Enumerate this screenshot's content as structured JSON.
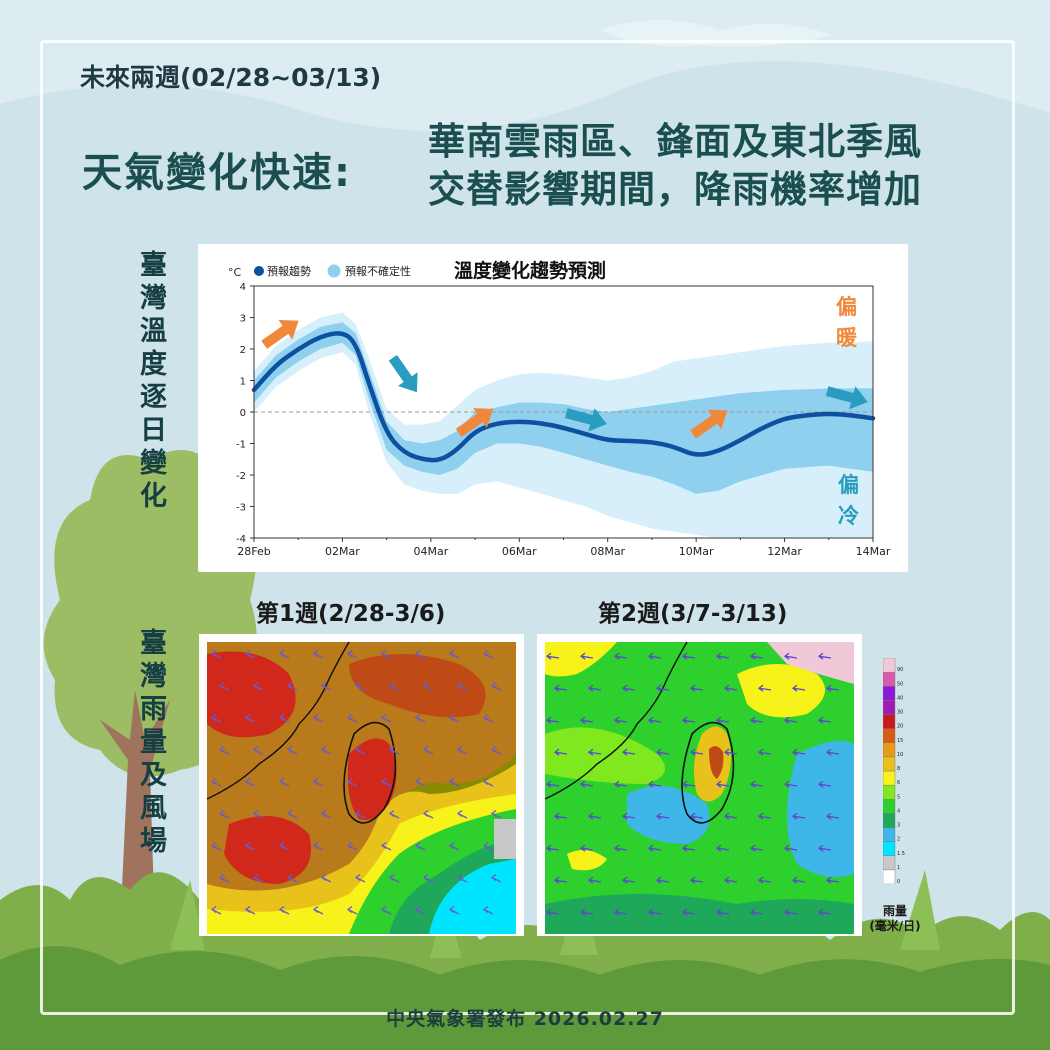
{
  "header": {
    "period": "未來兩週(02/28~03/13)",
    "headline": "天氣變化快速:",
    "subhead_line1": "華南雲雨區、鋒面及東北季風",
    "subhead_line2": "交替影響期間，降雨機率增加"
  },
  "side_labels": {
    "temperature": "臺灣溫度逐日變化",
    "rain_wind": "臺灣雨量及風場"
  },
  "chart_data": {
    "type": "line",
    "title": "溫度變化趨勢預測",
    "unit_label": "°C",
    "legend": [
      {
        "label": "預報趨勢",
        "color": "#0d4fa0"
      },
      {
        "label": "預報不確定性",
        "color": "#8fd0ef"
      }
    ],
    "x_ticks": [
      "28Feb",
      "02Mar",
      "04Mar",
      "06Mar",
      "08Mar",
      "10Mar",
      "12Mar",
      "14Mar"
    ],
    "x_range_days": [
      0,
      14
    ],
    "ylim": [
      -4,
      4
    ],
    "y_ticks": [
      4,
      3,
      2,
      1,
      0,
      -1,
      -2,
      -3,
      -4
    ],
    "series": [
      {
        "name": "預報趨勢",
        "x": [
          0,
          0.5,
          1,
          1.5,
          2,
          2.3,
          2.6,
          3,
          3.4,
          3.8,
          4.2,
          4.6,
          5,
          5.5,
          6,
          6.5,
          7,
          7.5,
          8,
          8.5,
          9,
          9.5,
          10,
          10.5,
          11,
          11.5,
          12,
          12.5,
          13,
          13.5,
          14
        ],
        "y": [
          0.7,
          1.5,
          2.0,
          2.4,
          2.55,
          2.2,
          0.9,
          -0.7,
          -1.3,
          -1.5,
          -1.55,
          -1.2,
          -0.6,
          -0.35,
          -0.3,
          -0.35,
          -0.5,
          -0.7,
          -0.9,
          -0.92,
          -0.95,
          -1.1,
          -1.4,
          -1.25,
          -0.9,
          -0.5,
          -0.2,
          -0.1,
          -0.05,
          -0.1,
          -0.2
        ],
        "color": "#0d4fa0"
      },
      {
        "name": "inner_band",
        "color": "#8fd0ef",
        "x": [
          0,
          0.5,
          1,
          1.5,
          2,
          2.3,
          2.6,
          3,
          3.4,
          3.8,
          4.2,
          4.6,
          5,
          5.5,
          6,
          6.5,
          7,
          7.5,
          8,
          8.5,
          9,
          9.5,
          10,
          10.5,
          11,
          11.5,
          12,
          12.5,
          13,
          13.5,
          14
        ],
        "upper": [
          1.0,
          1.8,
          2.3,
          2.7,
          2.85,
          2.5,
          1.3,
          -0.3,
          -0.9,
          -1.0,
          -0.9,
          -0.6,
          0.0,
          0.15,
          0.3,
          0.3,
          0.25,
          0.1,
          0.0,
          0.1,
          0.2,
          0.3,
          0.4,
          0.5,
          0.6,
          0.65,
          0.7,
          0.72,
          0.75,
          0.75,
          0.75
        ],
        "lower": [
          0.3,
          1.1,
          1.6,
          2.0,
          2.2,
          1.8,
          0.4,
          -1.2,
          -1.7,
          -1.9,
          -2.0,
          -1.8,
          -1.3,
          -1.0,
          -1.0,
          -1.1,
          -1.3,
          -1.5,
          -1.7,
          -1.9,
          -2.05,
          -2.3,
          -2.6,
          -2.5,
          -2.2,
          -2.0,
          -1.8,
          -1.75,
          -1.7,
          -1.8,
          -1.9
        ]
      },
      {
        "name": "outer_band",
        "color": "#d6effa",
        "x": [
          0,
          0.5,
          1,
          1.5,
          2,
          2.3,
          2.6,
          3,
          3.4,
          3.8,
          4.2,
          4.6,
          5,
          5.5,
          6,
          6.5,
          7,
          7.5,
          8,
          8.5,
          9,
          9.5,
          10,
          10.5,
          11,
          11.5,
          12,
          12.5,
          13,
          13.5,
          14
        ],
        "upper": [
          1.3,
          2.1,
          2.6,
          3.0,
          3.15,
          2.8,
          1.7,
          0.1,
          -0.4,
          -0.4,
          -0.3,
          0.2,
          0.7,
          1.0,
          1.2,
          1.25,
          1.2,
          1.1,
          1.0,
          1.1,
          1.3,
          1.6,
          1.7,
          1.8,
          1.9,
          2.0,
          2.1,
          2.15,
          2.2,
          2.2,
          2.25
        ],
        "lower": [
          0.0,
          0.8,
          1.3,
          1.7,
          1.9,
          1.5,
          0.0,
          -1.6,
          -2.3,
          -2.5,
          -2.6,
          -2.6,
          -2.3,
          -2.2,
          -2.4,
          -2.6,
          -2.8,
          -3.0,
          -3.3,
          -3.5,
          -3.7,
          -3.8,
          -3.9,
          -4.0,
          -4.0,
          -4.0,
          -4.0,
          -4.0,
          -4.0,
          -4.0,
          -4.0
        ]
      }
    ],
    "annotations": {
      "warm_label": "偏暖",
      "cold_label": "偏冷"
    },
    "trend_arrows": [
      {
        "direction": "up",
        "color": "#f0883c"
      },
      {
        "direction": "down",
        "color": "#2a9cc0"
      },
      {
        "direction": "up",
        "color": "#f0883c"
      },
      {
        "direction": "flat",
        "color": "#2a9cc0"
      },
      {
        "direction": "up",
        "color": "#f0883c"
      },
      {
        "direction": "flat",
        "color": "#2a9cc0"
      }
    ]
  },
  "maps": {
    "week1_title": "第1週(2/28-3/6)",
    "week2_title": "第2週(3/7-3/13)"
  },
  "colorbar": {
    "title_line1": "雨量",
    "title_line2": "(毫米/日)",
    "levels": [
      "0",
      "1",
      "1.5",
      "2",
      "3",
      "4",
      "5",
      "6",
      "8",
      "10",
      "15",
      "20",
      "30",
      "40",
      "50",
      "90"
    ],
    "colors": [
      "#ffffff",
      "#c8c8c8",
      "#00e5ff",
      "#3fb6e8",
      "#1fa85a",
      "#2dd02d",
      "#7fe81f",
      "#f6f21a",
      "#e8c21a",
      "#e89a1a",
      "#d95a12",
      "#c81a1a",
      "#a01ab0",
      "#8a1ad8",
      "#d85aa8",
      "#f0c8d8"
    ]
  },
  "footer": "中央氣象署發布 2026.02.27"
}
